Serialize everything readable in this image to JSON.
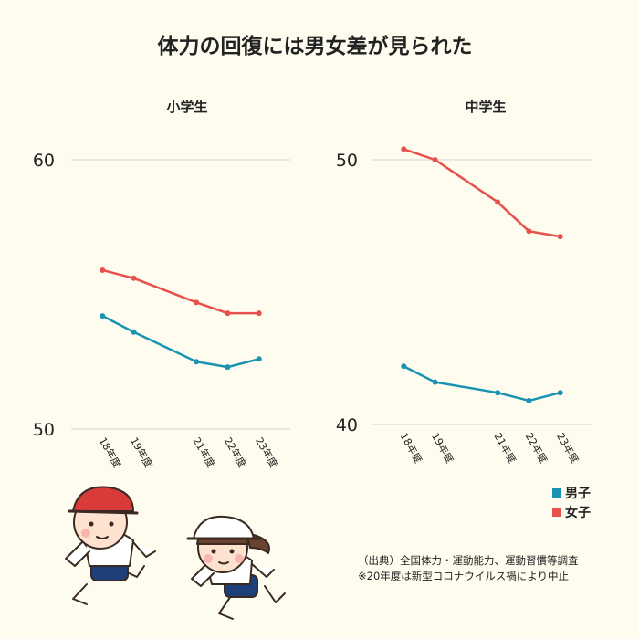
{
  "title": "体力の回復には男女差が見られた",
  "colors": {
    "boys": "#1a93b3",
    "girls": "#e8504c",
    "grid": "#d6d6d0",
    "background": "#fdfcee"
  },
  "legend": [
    {
      "label": "男子",
      "color": "#1a93b3"
    },
    {
      "label": "女子",
      "color": "#e8504c"
    }
  ],
  "source": {
    "line1": "（出典）全国体力・運動能力、運動習慣等調査",
    "line2": "※20年度は新型コロナウイルス禍により中止"
  },
  "chart_data": [
    {
      "type": "line",
      "title": "小学生",
      "x": [
        18,
        19,
        21,
        22,
        23
      ],
      "categories": [
        "18年度",
        "19年度",
        "21年度",
        "22年度",
        "23年度"
      ],
      "ylim": [
        50,
        60
      ],
      "yticks": [
        50,
        60
      ],
      "grid": true,
      "series": [
        {
          "name": "男子",
          "values": [
            54.2,
            53.6,
            52.5,
            52.3,
            52.6
          ]
        },
        {
          "name": "女子",
          "values": [
            55.9,
            55.6,
            54.7,
            54.3,
            54.3
          ]
        }
      ]
    },
    {
      "type": "line",
      "title": "中学生",
      "x": [
        18,
        19,
        21,
        22,
        23
      ],
      "categories": [
        "18年度",
        "19年度",
        "21年度",
        "22年度",
        "23年度"
      ],
      "ylim": [
        40,
        50
      ],
      "yticks": [
        40,
        50
      ],
      "grid": true,
      "series": [
        {
          "name": "男子",
          "values": [
            42.2,
            41.6,
            41.2,
            40.9,
            41.2
          ]
        },
        {
          "name": "女子",
          "values": [
            50.4,
            50.0,
            48.4,
            47.3,
            47.1
          ]
        }
      ]
    }
  ],
  "illustration": {
    "subject": "two running children",
    "icon": "running-kids-illustration"
  }
}
